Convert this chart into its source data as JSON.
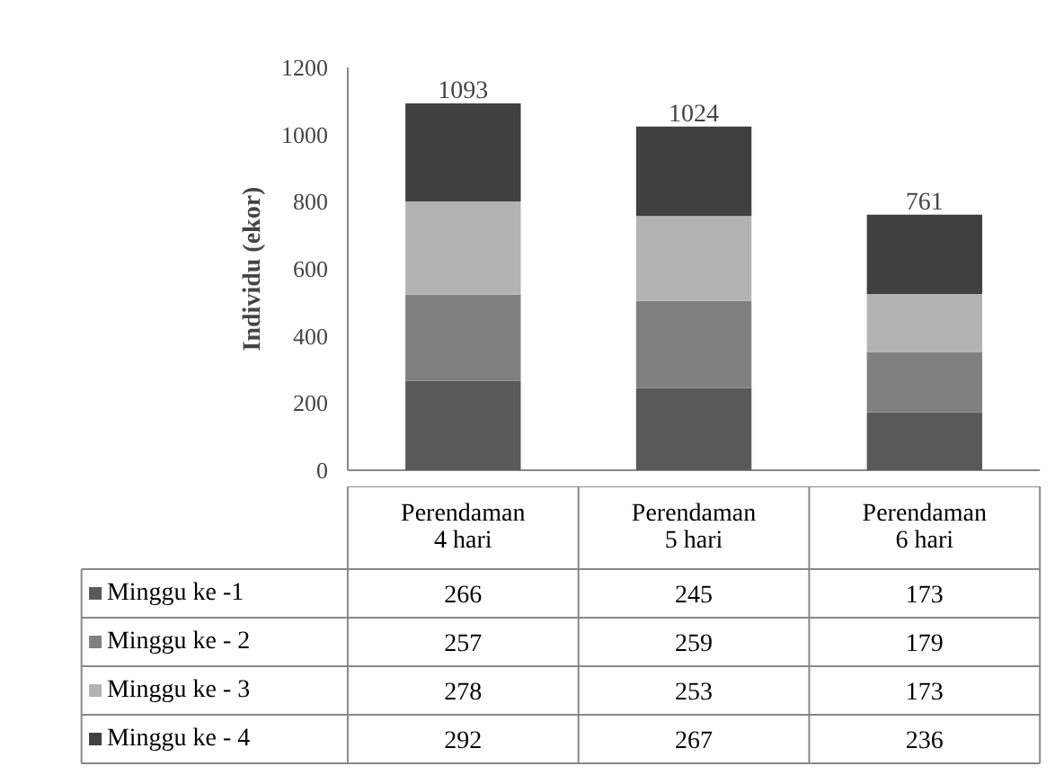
{
  "chart_data": {
    "type": "bar",
    "stacked": true,
    "ylabel": "Individu (ekor)",
    "categories": [
      "Perendaman 4 hari",
      "Perendaman 5 hari",
      "Perendaman 6 hari"
    ],
    "series": [
      {
        "name": "Minggu ke -1",
        "color": "#595959",
        "values": [
          266,
          245,
          173
        ]
      },
      {
        "name": "Minggu ke - 2",
        "color": "#808080",
        "values": [
          257,
          259,
          179
        ]
      },
      {
        "name": "Minggu ke - 3",
        "color": "#b3b3b3",
        "values": [
          278,
          253,
          173
        ]
      },
      {
        "name": "Minggu ke - 4",
        "color": "#404040",
        "values": [
          292,
          267,
          236
        ]
      }
    ],
    "ylim": [
      0,
      1200
    ],
    "yticks": [
      0,
      200,
      400,
      600,
      800,
      1000,
      1200
    ],
    "totals": [
      "1093",
      "1024",
      "761"
    ],
    "data_labels": true,
    "legend": "bottom",
    "grid": false
  }
}
